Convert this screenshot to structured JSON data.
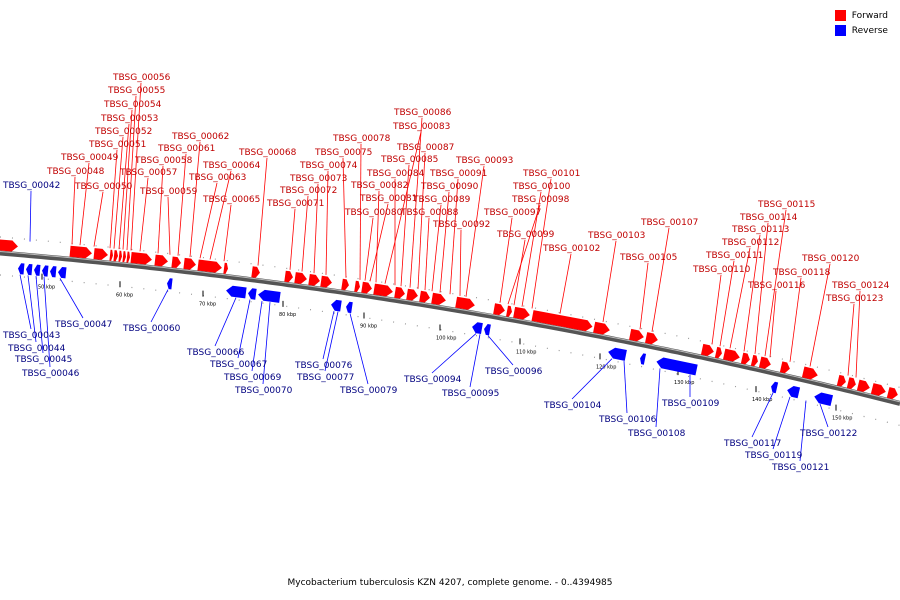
{
  "caption": "Mycobacterium tuberculosis KZN 4207, complete genome. - 0..4394985",
  "colors": {
    "forward": "#ff0000",
    "reverse": "#0000ff",
    "forward_label": "#c00000",
    "reverse_label": "#000080"
  },
  "legend": {
    "forward": "Forward",
    "reverse": "Reverse"
  },
  "ticks": [
    "50 kbp",
    "60 kbp",
    "70 kbp",
    "80 kbp",
    "90 kbp",
    "100 kbp",
    "110 kbp",
    "120 kbp",
    "130 kbp",
    "140 kbp",
    "150 kbp"
  ],
  "forward_labels": [
    "TBSG_00048",
    "TBSG_00049",
    "TBSG_00050",
    "TBSG_00051",
    "TBSG_00052",
    "TBSG_00053",
    "TBSG_00054",
    "TBSG_00055",
    "TBSG_00056",
    "TBSG_00057",
    "TBSG_00058",
    "TBSG_00059",
    "TBSG_00061",
    "TBSG_00062",
    "TBSG_00063",
    "TBSG_00064",
    "TBSG_00065",
    "TBSG_00068",
    "TBSG_00071",
    "TBSG_00072",
    "TBSG_00073",
    "TBSG_00074",
    "TBSG_00075",
    "TBSG_00078",
    "TBSG_00080",
    "TBSG_00081",
    "TBSG_00082",
    "TBSG_00083",
    "TBSG_00084",
    "TBSG_00085",
    "TBSG_00086",
    "TBSG_00087",
    "TBSG_00088",
    "TBSG_00089",
    "TBSG_00090",
    "TBSG_00091",
    "TBSG_00092",
    "TBSG_00093",
    "TBSG_00097",
    "TBSG_00098",
    "TBSG_00099",
    "TBSG_00100",
    "TBSG_00101",
    "TBSG_00102",
    "TBSG_00103",
    "TBSG_00105",
    "TBSG_00107",
    "TBSG_00110",
    "TBSG_00111",
    "TBSG_00112",
    "TBSG_00113",
    "TBSG_00114",
    "TBSG_00115",
    "TBSG_00116",
    "TBSG_00118",
    "TBSG_00120",
    "TBSG_00123",
    "TBSG_00124"
  ],
  "reverse_labels": [
    "TBSG_00042",
    "TBSG_00043",
    "TBSG_00044",
    "TBSG_00045",
    "TBSG_00046",
    "TBSG_00047",
    "TBSG_00060",
    "TBSG_00066",
    "TBSG_00067",
    "TBSG_00069",
    "TBSG_00070",
    "TBSG_00076",
    "TBSG_00077",
    "TBSG_00079",
    "TBSG_00094",
    "TBSG_00095",
    "TBSG_00096",
    "TBSG_00104",
    "TBSG_00106",
    "TBSG_00108",
    "TBSG_00109",
    "TBSG_00117",
    "TBSG_00119",
    "TBSG_00121",
    "TBSG_00122"
  ]
}
